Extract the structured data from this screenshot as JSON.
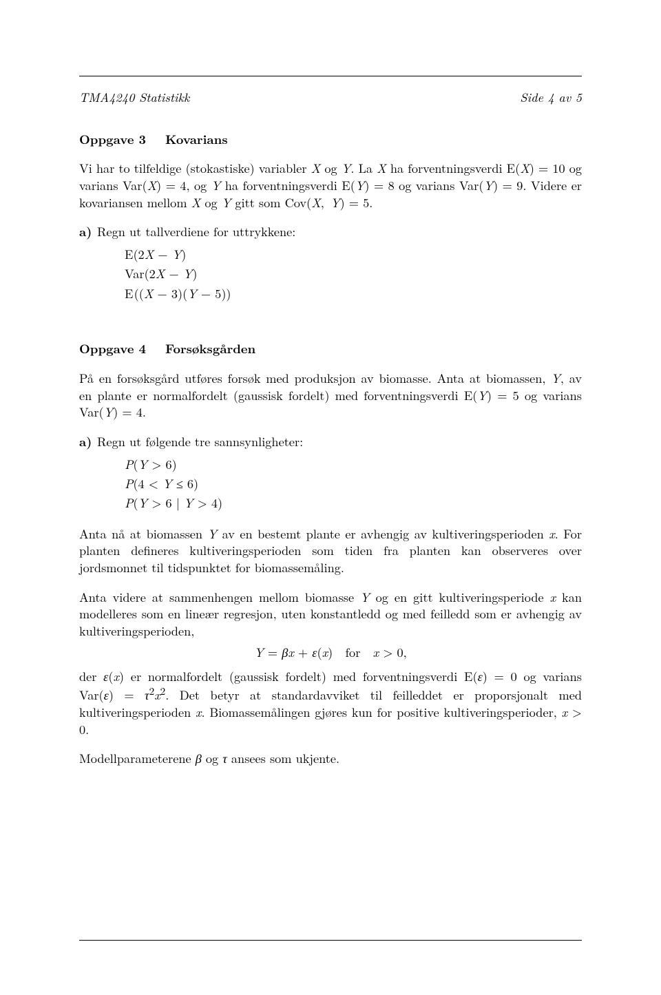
{
  "header": {
    "left": "TMA4240 Statistikk",
    "right": "Side 4 av 5"
  },
  "oppgave3": {
    "heading_num": "Oppgave 3",
    "heading_title": "Kovarians",
    "para1": "Vi har to tilfeldige (stokastiske) variabler X og Y. La X ha forventningsverdi E(X) = 10 og varians Var(X) = 4, og Y ha forventningsverdi E(Y) = 8 og varians Var(Y) = 9. Videre er kovariansen mellom X og Y gitt som Cov(X, Y) = 5.",
    "a_label": "a)",
    "a_text": "Regn ut tallverdiene for uttrykkene:",
    "a_line1": "E(2X − Y)",
    "a_line2": "Var(2X − Y)",
    "a_line3": "E ((X − 3)(Y − 5))"
  },
  "oppgave4": {
    "heading_num": "Oppgave 4",
    "heading_title": "Forsøksgården",
    "para1": "På en forsøksgård utføres forsøk med produksjon av biomasse. Anta at biomassen, Y, av en plante er normalfordelt (gaussisk fordelt) med forventningsverdi E(Y) = 5 og varians Var(Y) = 4.",
    "a_label": "a)",
    "a_text": "Regn ut følgende tre sannsynligheter:",
    "a_line1": "P(Y > 6)",
    "a_line2": "P(4 < Y ≤ 6)",
    "a_line3": "P(Y > 6 | Y > 4)",
    "para2": "Anta nå at biomassen Y av en bestemt plante er avhengig av kultiveringsperioden x. For planten defineres kultiveringsperioden som tiden fra planten kan observeres over jordsmonnet til tidspunktet for biomassemåling.",
    "para3": "Anta videre at sammenhengen mellom biomasse Y og en gitt kultiveringsperiode x kan modelleres som en lineær regresjon, uten konstantledd og med feilledd som er avhengig av kultiveringsperioden,",
    "eq": "Y = βx + ε(x)  for  x > 0,",
    "para4": "der ε(x) er normalfordelt (gaussisk fordelt) med forventningsverdi E(ε) = 0 og varians Var(ε) = τ²x². Det betyr at standardavviket til feilleddet er proporsjonalt med kultiveringsperioden x. Biomassemålingen gjøres kun for positive kultiveringsperioder, x > 0.",
    "para5": "Modellparameterene β og τ ansees som ukjente."
  }
}
